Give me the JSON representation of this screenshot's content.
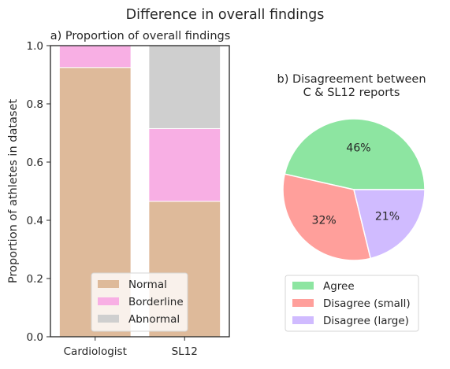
{
  "figure": {
    "suptitle": "Difference in overall findings"
  },
  "chart_data": [
    {
      "type": "bar",
      "stacked": true,
      "title": "a) Proportion of overall findings",
      "xlabel": "",
      "ylabel": "Proportion of athletes in dataset",
      "ylim": [
        0,
        1
      ],
      "yticks": [
        0.0,
        0.2,
        0.4,
        0.6,
        0.8,
        1.0
      ],
      "ytick_labels": [
        "0.0",
        "0.2",
        "0.4",
        "0.6",
        "0.8",
        "1.0"
      ],
      "categories": [
        "Cardiologist",
        "SL12"
      ],
      "series": [
        {
          "name": "Normal",
          "values": [
            0.925,
            0.465
          ],
          "color": "#deba9a"
        },
        {
          "name": "Borderline",
          "values": [
            0.075,
            0.25
          ],
          "color": "#f8afe4"
        },
        {
          "name": "Abnormal",
          "values": [
            0.0,
            0.285
          ],
          "color": "#cfcfcf"
        }
      ],
      "grid": false,
      "legend_position": "lower-center"
    },
    {
      "type": "pie",
      "title_lines": [
        "b) Disagreement between",
        "C & SL12 reports"
      ],
      "slices": [
        {
          "name": "Agree",
          "value": 46,
          "label": "46%",
          "color": "#8de5a1"
        },
        {
          "name": "Disagree (small)",
          "value": 32,
          "label": "32%",
          "color": "#ff9f9b"
        },
        {
          "name": "Disagree (large)",
          "value": 21,
          "label": "21%",
          "color": "#d0bbff"
        }
      ],
      "legend_position": "below"
    }
  ]
}
